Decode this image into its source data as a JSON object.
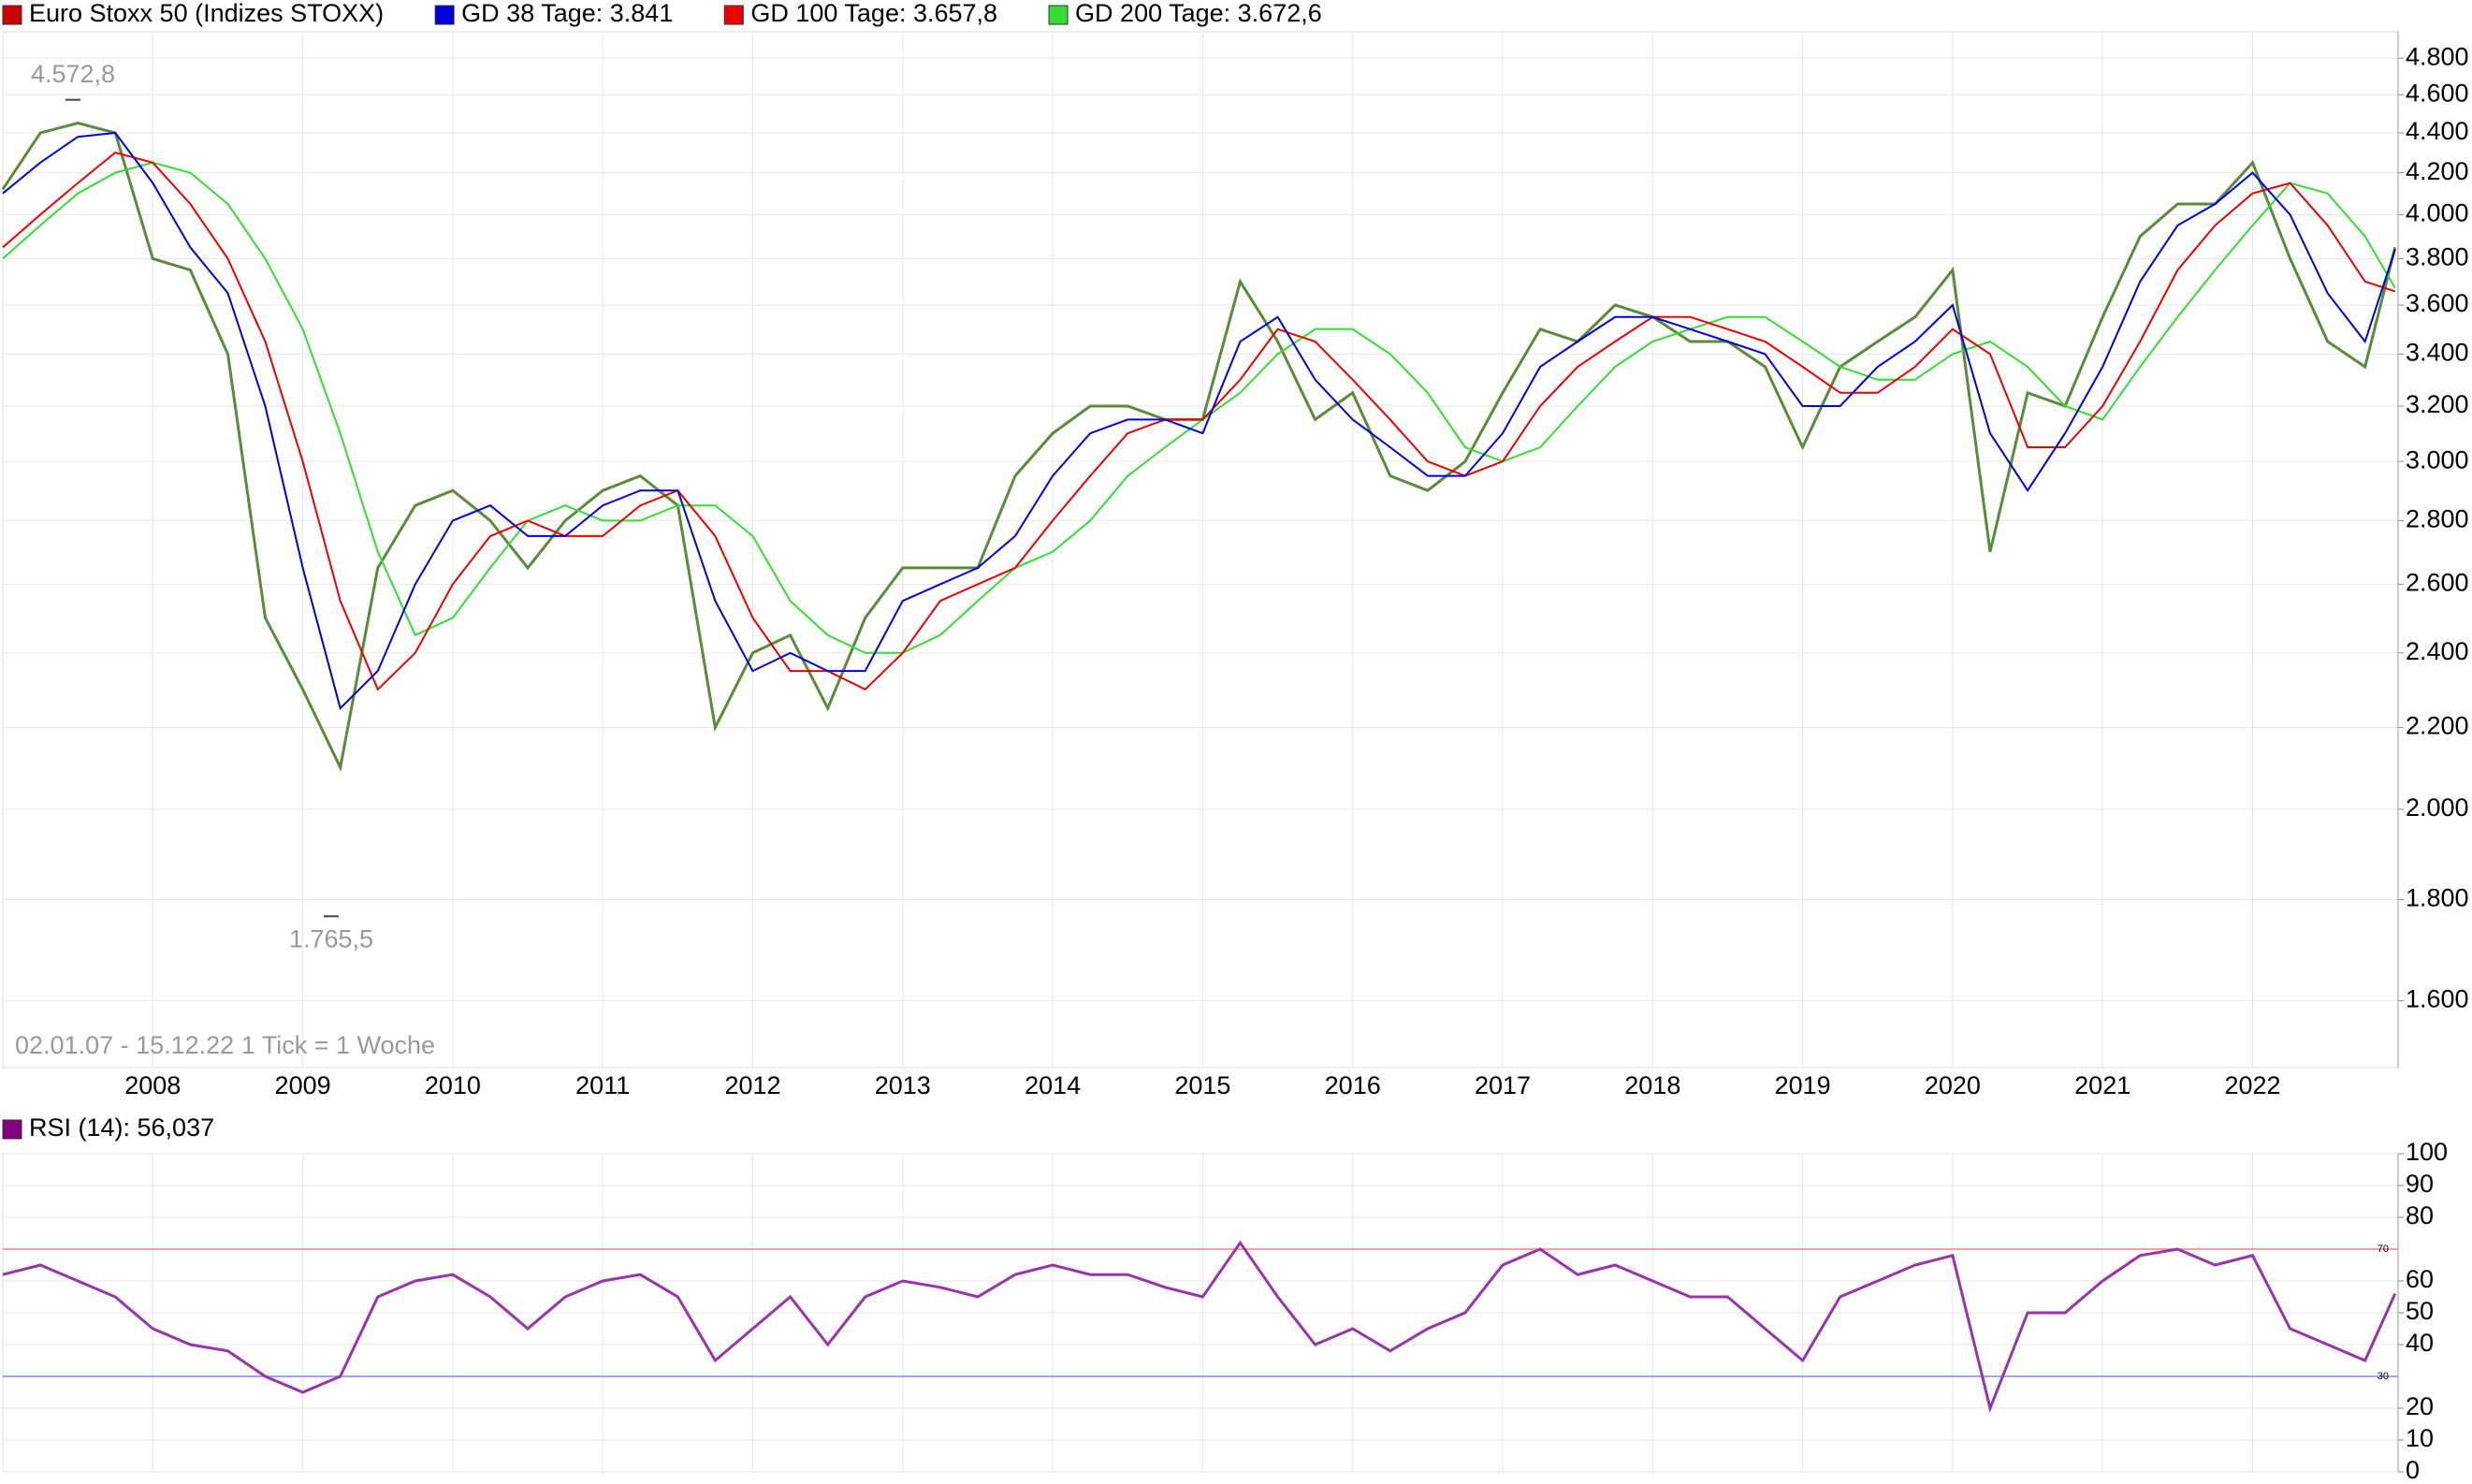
{
  "chart_data": [
    {
      "type": "line",
      "log_scale": true,
      "grid": true,
      "footnote": "02.01.07 - 15.12.22   1 Tick = 1 Woche",
      "annotations": [
        {
          "value": 4572.8,
          "label": "4.572,8"
        },
        {
          "value": 1765.5,
          "label": "1.765,5"
        }
      ],
      "x": [
        2007.0,
        2007.25,
        2007.5,
        2007.75,
        2008.0,
        2008.25,
        2008.5,
        2008.75,
        2009.0,
        2009.25,
        2009.5,
        2009.75,
        2010.0,
        2010.25,
        2010.5,
        2010.75,
        2011.0,
        2011.25,
        2011.5,
        2011.75,
        2012.0,
        2012.25,
        2012.5,
        2012.75,
        2013.0,
        2013.25,
        2013.5,
        2013.75,
        2014.0,
        2014.25,
        2014.5,
        2014.75,
        2015.0,
        2015.25,
        2015.5,
        2015.75,
        2016.0,
        2016.25,
        2016.5,
        2016.75,
        2017.0,
        2017.25,
        2017.5,
        2017.75,
        2018.0,
        2018.25,
        2018.5,
        2018.75,
        2019.0,
        2019.25,
        2019.5,
        2019.75,
        2020.0,
        2020.25,
        2020.5,
        2020.75,
        2021.0,
        2021.25,
        2021.5,
        2021.75,
        2022.0,
        2022.25,
        2022.5,
        2022.75,
        2022.95
      ],
      "xlim": [
        2007.0,
        2022.97
      ],
      "xticks": [
        2008,
        2009,
        2010,
        2011,
        2012,
        2013,
        2014,
        2015,
        2016,
        2017,
        2018,
        2019,
        2020,
        2021,
        2022
      ],
      "ylim": [
        1480,
        4950
      ],
      "yticks": [
        {
          "value": 1600,
          "label": "1.600"
        },
        {
          "value": 1800,
          "label": "1.800"
        },
        {
          "value": 2000,
          "label": "2.000"
        },
        {
          "value": 2200,
          "label": "2.200"
        },
        {
          "value": 2400,
          "label": "2.400"
        },
        {
          "value": 2600,
          "label": "2.600"
        },
        {
          "value": 2800,
          "label": "2.800"
        },
        {
          "value": 3000,
          "label": "3.000"
        },
        {
          "value": 3200,
          "label": "3.200"
        },
        {
          "value": 3400,
          "label": "3.400"
        },
        {
          "value": 3600,
          "label": "3.600"
        },
        {
          "value": 3800,
          "label": "3.800"
        },
        {
          "value": 4000,
          "label": "4.000"
        },
        {
          "value": 4200,
          "label": "4.200"
        },
        {
          "value": 4400,
          "label": "4.400"
        },
        {
          "value": 4600,
          "label": "4.600"
        },
        {
          "value": 4800,
          "label": "4.800"
        }
      ],
      "series": [
        {
          "name": "Euro Stoxx 50 (Indizes STOXX)",
          "color": "#cc0000",
          "line_color": "#5a8a3a",
          "values": [
            4120,
            4400,
            4450,
            4400,
            3800,
            3750,
            3400,
            2500,
            2300,
            2100,
            2650,
            2850,
            2900,
            2800,
            2650,
            2800,
            2900,
            2950,
            2850,
            2200,
            2400,
            2450,
            2250,
            2500,
            2650,
            2650,
            2650,
            2950,
            3100,
            3200,
            3200,
            3150,
            3150,
            3700,
            3450,
            3150,
            3250,
            2950,
            2900,
            3000,
            3250,
            3500,
            3450,
            3600,
            3550,
            3450,
            3450,
            3350,
            3050,
            3350,
            3450,
            3550,
            3750,
            2700,
            3250,
            3200,
            3550,
            3900,
            4050,
            4050,
            4250,
            3800,
            3450,
            3350,
            3850
          ]
        },
        {
          "name": "GD 38 Tage: 3.841",
          "color": "#0000dd",
          "values": [
            4100,
            4250,
            4380,
            4400,
            4150,
            3850,
            3650,
            3200,
            2650,
            2250,
            2350,
            2600,
            2800,
            2850,
            2750,
            2750,
            2850,
            2900,
            2900,
            2550,
            2350,
            2400,
            2350,
            2350,
            2550,
            2600,
            2650,
            2750,
            2950,
            3100,
            3150,
            3150,
            3100,
            3450,
            3550,
            3300,
            3150,
            3050,
            2950,
            2950,
            3100,
            3350,
            3450,
            3550,
            3550,
            3500,
            3450,
            3400,
            3200,
            3200,
            3350,
            3450,
            3600,
            3100,
            2900,
            3100,
            3350,
            3700,
            3950,
            4050,
            4200,
            4000,
            3650,
            3450,
            3841
          ]
        },
        {
          "name": "GD 100 Tage: 3.657,8",
          "color": "#ee0000",
          "values": [
            3850,
            4000,
            4150,
            4300,
            4250,
            4050,
            3800,
            3450,
            3000,
            2550,
            2300,
            2400,
            2600,
            2750,
            2800,
            2750,
            2750,
            2850,
            2900,
            2750,
            2500,
            2350,
            2350,
            2300,
            2400,
            2550,
            2600,
            2650,
            2800,
            2950,
            3100,
            3150,
            3150,
            3300,
            3500,
            3450,
            3300,
            3150,
            3000,
            2950,
            3000,
            3200,
            3350,
            3450,
            3550,
            3550,
            3500,
            3450,
            3350,
            3250,
            3250,
            3350,
            3500,
            3400,
            3050,
            3050,
            3200,
            3450,
            3750,
            3950,
            4100,
            4150,
            3950,
            3700,
            3657.8
          ]
        },
        {
          "name": "GD 200 Tage: 3.672,6",
          "color": "#33dd33",
          "values": [
            3800,
            3950,
            4100,
            4200,
            4250,
            4200,
            4050,
            3800,
            3500,
            3100,
            2700,
            2450,
            2500,
            2650,
            2800,
            2850,
            2800,
            2800,
            2850,
            2850,
            2750,
            2550,
            2450,
            2400,
            2400,
            2450,
            2550,
            2650,
            2700,
            2800,
            2950,
            3050,
            3150,
            3250,
            3400,
            3500,
            3500,
            3400,
            3250,
            3050,
            3000,
            3050,
            3200,
            3350,
            3450,
            3500,
            3550,
            3550,
            3450,
            3350,
            3300,
            3300,
            3400,
            3450,
            3350,
            3200,
            3150,
            3350,
            3550,
            3750,
            3950,
            4150,
            4100,
            3900,
            3672.6
          ]
        }
      ]
    },
    {
      "type": "line",
      "grid": true,
      "x": [
        2007.0,
        2007.25,
        2007.5,
        2007.75,
        2008.0,
        2008.25,
        2008.5,
        2008.75,
        2009.0,
        2009.25,
        2009.5,
        2009.75,
        2010.0,
        2010.25,
        2010.5,
        2010.75,
        2011.0,
        2011.25,
        2011.5,
        2011.75,
        2012.0,
        2012.25,
        2012.5,
        2012.75,
        2013.0,
        2013.25,
        2013.5,
        2013.75,
        2014.0,
        2014.25,
        2014.5,
        2014.75,
        2015.0,
        2015.25,
        2015.5,
        2015.75,
        2016.0,
        2016.25,
        2016.5,
        2016.75,
        2017.0,
        2017.25,
        2017.5,
        2017.75,
        2018.0,
        2018.25,
        2018.5,
        2018.75,
        2019.0,
        2019.25,
        2019.5,
        2019.75,
        2020.0,
        2020.25,
        2020.5,
        2020.75,
        2021.0,
        2021.25,
        2021.5,
        2021.75,
        2022.0,
        2022.25,
        2022.5,
        2022.75,
        2022.95
      ],
      "xlim": [
        2007.0,
        2022.97
      ],
      "ylim": [
        0,
        100
      ],
      "yticks": [
        0,
        10,
        20,
        40,
        50,
        60,
        80,
        90,
        100
      ],
      "ref_lines": [
        {
          "value": 70,
          "color": "#f08080"
        },
        {
          "value": 30,
          "color": "#8080ff"
        }
      ],
      "series": [
        {
          "name": "RSI (14): 56,037",
          "color": "#800080",
          "line_color": "#9933aa",
          "values": [
            62,
            65,
            60,
            55,
            45,
            40,
            38,
            30,
            25,
            30,
            55,
            60,
            62,
            55,
            45,
            55,
            60,
            62,
            55,
            35,
            45,
            55,
            40,
            55,
            60,
            58,
            55,
            62,
            65,
            62,
            62,
            58,
            55,
            72,
            55,
            40,
            45,
            38,
            45,
            50,
            65,
            70,
            62,
            65,
            60,
            55,
            55,
            45,
            35,
            55,
            60,
            65,
            68,
            20,
            50,
            50,
            60,
            68,
            70,
            65,
            68,
            45,
            40,
            35,
            56
          ]
        }
      ]
    }
  ]
}
